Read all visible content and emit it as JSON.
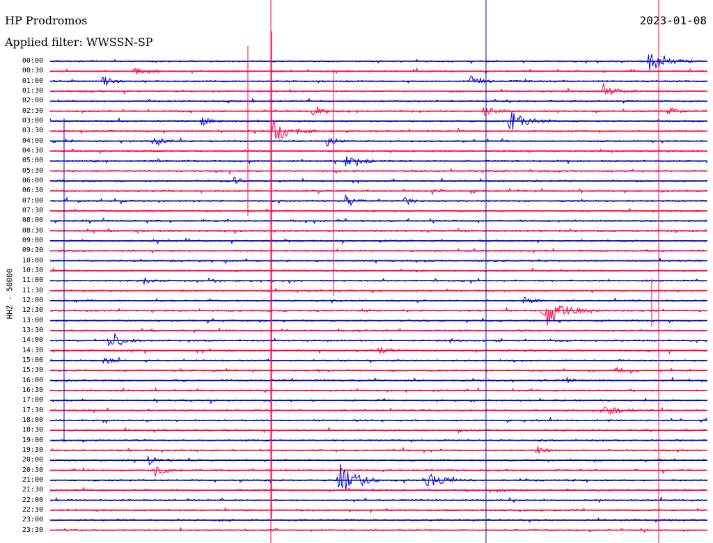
{
  "header": {
    "station": "HP Prodromos",
    "filter_label": "Applied filter: WWSSN-SP",
    "date": "2023-01-08"
  },
  "channel_label": "HHZ - 50000",
  "time_labels": [
    "00:00",
    "00:30",
    "01:00",
    "01:30",
    "02:00",
    "02:30",
    "03:00",
    "03:30",
    "04:00",
    "04:30",
    "05:00",
    "05:30",
    "06:00",
    "06:30",
    "07:00",
    "07:30",
    "08:00",
    "08:30",
    "09:00",
    "09:30",
    "10:00",
    "10:30",
    "11:00",
    "11:30",
    "12:00",
    "12:30",
    "13:00",
    "13:30",
    "14:00",
    "14:30",
    "15:00",
    "15:30",
    "16:00",
    "16:30",
    "17:00",
    "17:30",
    "18:00",
    "18:30",
    "19:00",
    "19:30",
    "20:00",
    "20:30",
    "21:00",
    "21:30",
    "22:00",
    "22:30",
    "23:00",
    "23:30"
  ],
  "colors": {
    "even": "#0000cc",
    "odd": "#ff0044",
    "text": "#000000"
  },
  "events": [
    [
      0,
      0.91,
      1.0,
      2.6
    ],
    [
      1,
      0.13,
      0.7,
      1.3
    ],
    [
      2,
      0.08,
      0.5,
      1.5
    ],
    [
      2,
      0.64,
      0.6,
      1.2
    ],
    [
      3,
      0.84,
      0.8,
      1.6
    ],
    [
      5,
      0.4,
      0.8,
      1.6
    ],
    [
      5,
      0.66,
      0.6,
      1.4
    ],
    [
      5,
      0.94,
      0.5,
      1.2
    ],
    [
      6,
      0.7,
      1.0,
      2.6
    ],
    [
      6,
      0.23,
      0.5,
      1.2
    ],
    [
      7,
      0.34,
      1.0,
      3.0
    ],
    [
      8,
      0.42,
      0.6,
      1.4
    ],
    [
      8,
      0.16,
      0.4,
      1.4
    ],
    [
      10,
      0.45,
      0.9,
      1.5
    ],
    [
      12,
      0.28,
      0.4,
      1.0
    ],
    [
      13,
      0.58,
      0.4,
      1.0
    ],
    [
      13,
      0.64,
      0.4,
      0.6
    ],
    [
      14,
      0.45,
      0.5,
      1.8
    ],
    [
      14,
      0.54,
      0.5,
      1.2
    ],
    [
      22,
      0.14,
      0.5,
      1.0
    ],
    [
      22,
      0.24,
      0.4,
      1.0
    ],
    [
      25,
      0.75,
      1.0,
      5.0
    ],
    [
      24,
      0.72,
      0.5,
      1.0
    ],
    [
      28,
      0.09,
      0.7,
      2.0
    ],
    [
      29,
      0.5,
      0.6,
      1.4
    ],
    [
      30,
      0.08,
      0.5,
      1.2
    ],
    [
      31,
      0.86,
      0.5,
      0.8
    ],
    [
      32,
      0.78,
      0.5,
      1.2
    ],
    [
      35,
      0.84,
      0.9,
      1.6
    ],
    [
      39,
      0.74,
      0.5,
      1.0
    ],
    [
      40,
      0.15,
      0.5,
      1.4
    ],
    [
      41,
      0.16,
      0.6,
      1.4
    ],
    [
      42,
      0.44,
      1.0,
      4.2
    ],
    [
      42,
      0.57,
      0.9,
      2.6
    ],
    [
      37,
      0.62,
      0.3,
      0.4
    ]
  ]
}
